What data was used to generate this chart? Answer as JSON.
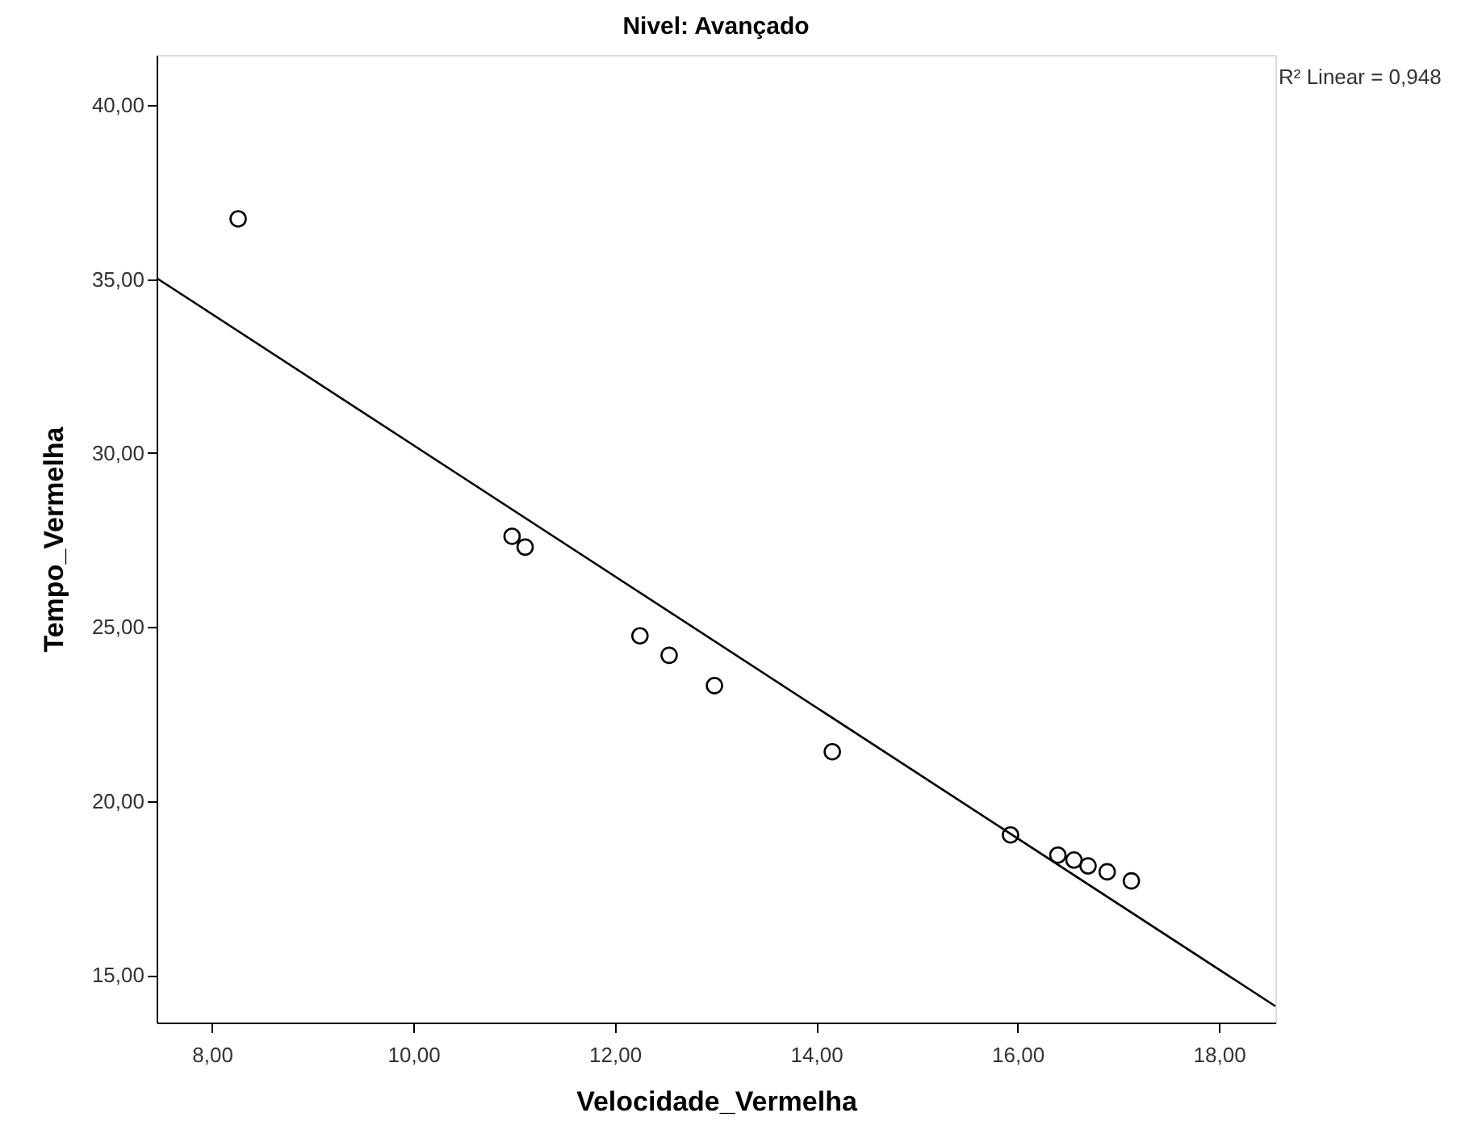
{
  "chart_data": {
    "type": "scatter",
    "title": "Nivel: Avançado",
    "xlabel": "Velocidade_Vermelha",
    "ylabel": "Tempo_Vermelha",
    "annotations": [
      "R² Linear = 0,948"
    ],
    "marker": "circle",
    "xlim": [
      7.45,
      18.56
    ],
    "ylim": [
      13.64,
      41.44
    ],
    "xticks": [
      {
        "value": 8,
        "label": "8,00"
      },
      {
        "value": 10,
        "label": "10,00"
      },
      {
        "value": 12,
        "label": "12,00"
      },
      {
        "value": 14,
        "label": "14,00"
      },
      {
        "value": 16,
        "label": "16,00"
      },
      {
        "value": 18,
        "label": "18,00"
      }
    ],
    "yticks": [
      {
        "value": 15,
        "label": "15,00"
      },
      {
        "value": 20,
        "label": "20,00"
      },
      {
        "value": 25,
        "label": "25,00"
      },
      {
        "value": 30,
        "label": "30,00"
      },
      {
        "value": 35,
        "label": "35,00"
      },
      {
        "value": 40,
        "label": "40,00"
      }
    ],
    "series": [
      {
        "color": "#000000",
        "x": [
          8.26,
          10.98,
          11.11,
          12.25,
          12.54,
          12.99,
          14.16,
          15.93,
          16.4,
          16.56,
          16.7,
          16.89,
          17.13
        ],
        "values": [
          36.73,
          27.61,
          27.3,
          24.75,
          24.19,
          23.32,
          21.42,
          19.03,
          18.45,
          18.31,
          18.14,
          17.97,
          17.71
        ]
      },
      {
        "type": "line",
        "marker": "none",
        "color": "#000000",
        "x": [
          7.45,
          18.56
        ],
        "values": [
          35.03,
          14.11
        ]
      }
    ]
  }
}
